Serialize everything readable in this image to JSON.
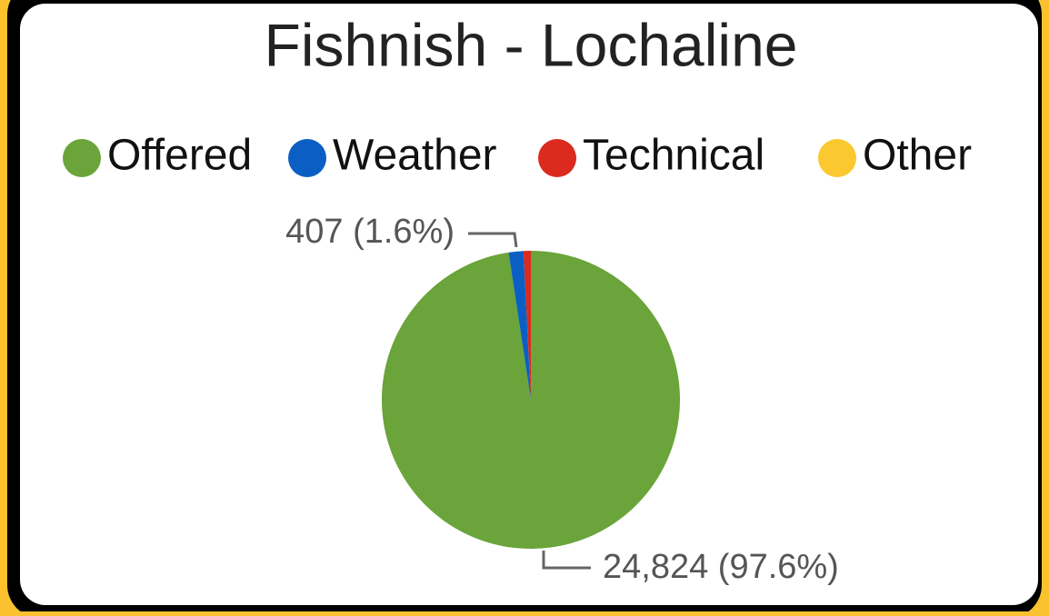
{
  "chart_data": {
    "type": "pie",
    "title": "Fishnish - Lochaline",
    "categories": [
      "Offered",
      "Weather",
      "Technical",
      "Other"
    ],
    "values": [
      24824,
      407,
      200,
      0
    ],
    "value_labels": [
      "24,824 (97.6%)",
      "407 (1.6%)",
      null,
      null
    ],
    "colors": [
      "#6aa43a",
      "#0b5fc4",
      "#dc2a1e",
      "#fbc82f"
    ],
    "legend": "top"
  }
}
